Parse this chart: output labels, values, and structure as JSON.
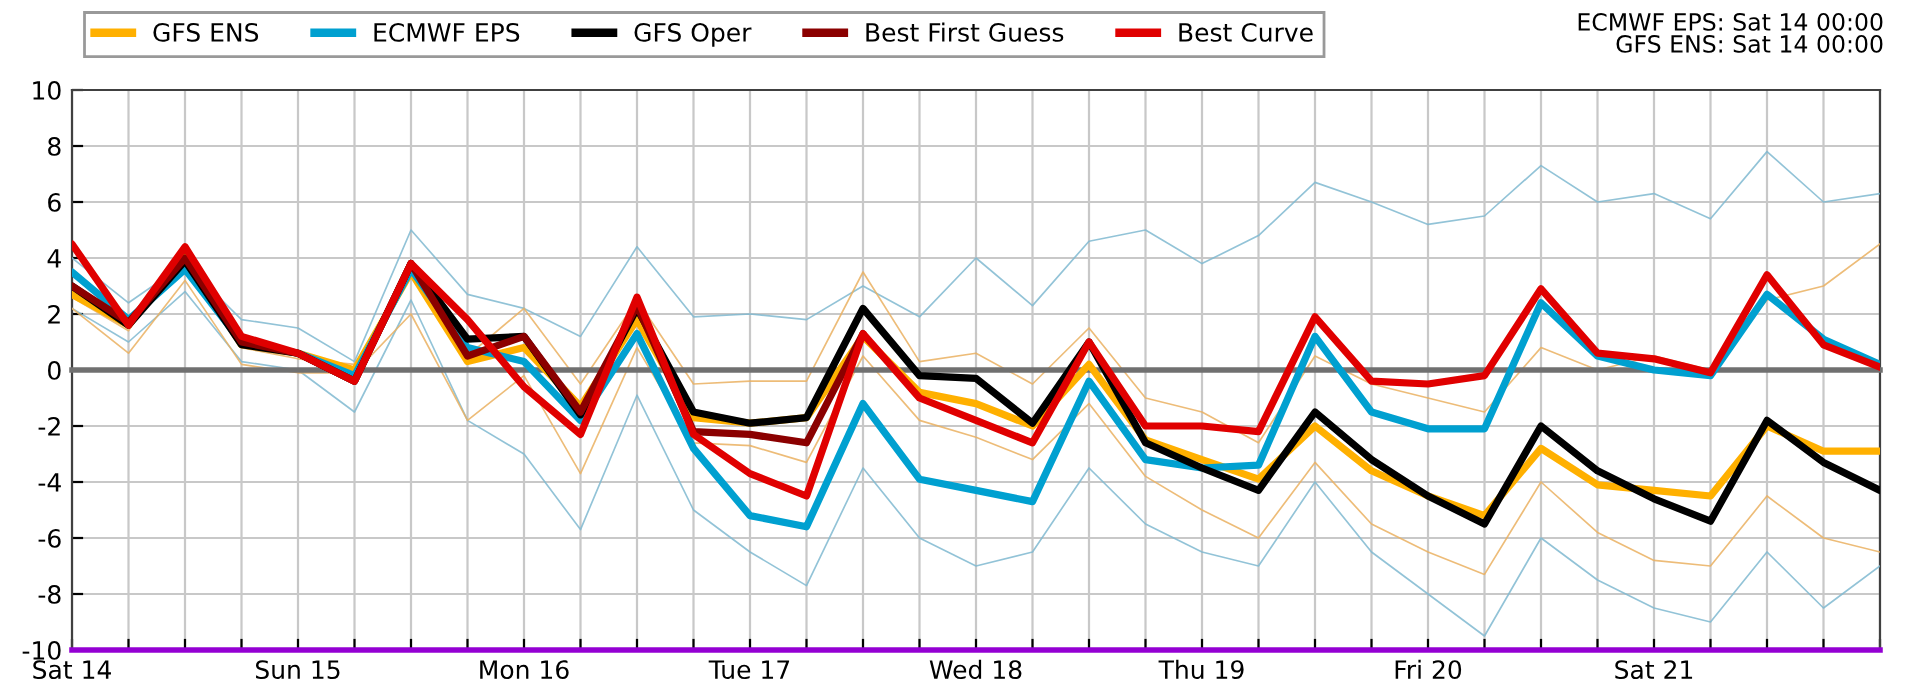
{
  "chart_data": {
    "type": "line",
    "categories": [
      "Sat 14",
      null,
      null,
      null,
      "Sun 15",
      null,
      null,
      null,
      "Mon 16",
      null,
      null,
      null,
      "Tue 17",
      null,
      null,
      null,
      "Wed 18",
      null,
      null,
      null,
      "Thu 19",
      null,
      null,
      null,
      "Fri 20",
      null,
      null,
      null,
      "Sat 21",
      null,
      null,
      null,
      null
    ],
    "series": [
      {
        "color": "#7fb8d0",
        "values": [
          4.0,
          2.4,
          3.8,
          1.8,
          1.5,
          0.3,
          5.0,
          2.7,
          2.2,
          1.2,
          4.4,
          1.9,
          2.0,
          1.8,
          3.0,
          1.9,
          4.0,
          2.3,
          4.6,
          5.0,
          3.8,
          4.8,
          6.7,
          6.0,
          5.2,
          5.5,
          7.3,
          6.0,
          6.3,
          5.4,
          7.8,
          6.0,
          6.3
        ]
      },
      {
        "color": "#7fb8d0",
        "values": [
          2.2,
          1.0,
          2.8,
          0.3,
          0.0,
          -1.5,
          2.5,
          -1.8,
          -3.0,
          -5.7,
          -0.9,
          -5.0,
          -6.5,
          -7.7,
          -3.5,
          -6.0,
          -7.0,
          -6.5,
          -3.5,
          -5.5,
          -6.5,
          -7.0,
          -4.0,
          -6.5,
          -8.0,
          -9.5,
          -6.0,
          -7.5,
          -8.5,
          -9.0,
          -6.5,
          -8.5,
          -7.0
        ]
      },
      {
        "color": "#eab060",
        "values": [
          2.6,
          1.4,
          4.5,
          0.8,
          0.4,
          0.2,
          3.4,
          0.5,
          2.2,
          -0.5,
          2.5,
          -0.5,
          -0.4,
          -0.4,
          3.5,
          0.3,
          0.6,
          -0.5,
          1.5,
          -1.0,
          -1.5,
          -2.6,
          0.5,
          -0.5,
          -1.0,
          -1.5,
          0.8,
          0.0,
          0.5,
          0.0,
          2.5,
          3.0,
          4.5
        ]
      },
      {
        "color": "#eab060",
        "values": [
          2.2,
          0.6,
          3.2,
          0.2,
          -0.1,
          -0.1,
          2.0,
          -1.8,
          -0.2,
          -3.7,
          0.8,
          -2.6,
          -2.7,
          -3.3,
          0.5,
          -1.8,
          -2.4,
          -3.2,
          -1.2,
          -3.8,
          -5.0,
          -6.0,
          -3.3,
          -5.5,
          -6.5,
          -7.3,
          -4.0,
          -5.8,
          -6.8,
          -7.0,
          -4.5,
          -6.0,
          -6.5
        ]
      },
      {
        "name": "GFS ENS",
        "color": "#ffb000",
        "values": [
          2.7,
          1.6,
          4.1,
          0.9,
          0.6,
          0.0,
          3.5,
          0.3,
          0.8,
          -1.3,
          1.8,
          -1.7,
          -1.9,
          -1.7,
          1.2,
          -0.8,
          -1.2,
          -2.0,
          0.2,
          -2.5,
          -3.2,
          -3.9,
          -2.0,
          -3.6,
          -4.5,
          -5.2,
          -2.8,
          -4.1,
          -4.3,
          -4.5,
          -2.0,
          -2.9,
          -2.9
        ]
      },
      {
        "name": "ECMWF EPS",
        "color": "#00a0d0",
        "values": [
          3.5,
          1.8,
          3.6,
          1.0,
          0.6,
          -0.2,
          3.6,
          0.8,
          0.3,
          -1.8,
          1.3,
          -2.8,
          -5.2,
          -5.6,
          -1.2,
          -3.9,
          -4.3,
          -4.7,
          -0.4,
          -3.2,
          -3.5,
          -3.4,
          1.2,
          -1.5,
          -2.1,
          -2.1,
          2.4,
          0.5,
          0.0,
          -0.2,
          2.7,
          1.1,
          0.2
        ]
      },
      {
        "name": "GFS Oper",
        "color": "#000000",
        "values": [
          3.0,
          1.6,
          3.9,
          0.9,
          0.6,
          -0.4,
          3.8,
          1.1,
          1.2,
          -1.6,
          2.2,
          -1.5,
          -1.9,
          -1.7,
          2.2,
          -0.2,
          -0.3,
          -1.9,
          1.0,
          -2.6,
          -3.5,
          -4.3,
          -1.5,
          -3.2,
          -4.5,
          -5.5,
          -2.0,
          -3.6,
          -4.6,
          -5.4,
          -1.8,
          -3.3,
          -4.3
        ]
      },
      {
        "name": "Best First Guess",
        "color": "#8b0000",
        "values": [
          3.0,
          1.7,
          4.0,
          1.0,
          0.6,
          -0.4,
          3.8,
          0.5,
          1.2,
          -1.5,
          2.3,
          -2.2,
          -2.3,
          -2.6,
          1.3,
          null,
          null,
          null,
          null,
          null,
          null,
          null,
          null,
          null,
          null,
          null,
          null,
          null,
          null,
          null,
          null,
          null,
          null
        ]
      },
      {
        "name": "Best Curve",
        "color": "#e00000",
        "values": [
          4.5,
          1.6,
          4.4,
          1.2,
          0.6,
          -0.4,
          3.8,
          1.8,
          -0.6,
          -2.3,
          2.6,
          -2.3,
          -3.7,
          -4.5,
          1.3,
          -1.0,
          -1.8,
          -2.6,
          1.0,
          -2.0,
          -2.0,
          -2.2,
          1.9,
          -0.4,
          -0.5,
          -0.2,
          2.9,
          0.6,
          0.4,
          -0.1,
          3.4,
          0.9,
          0.1
        ]
      }
    ],
    "ylim": [
      -10,
      10
    ],
    "yticks": [
      -10,
      -8,
      -6,
      -4,
      -2,
      0,
      2,
      4,
      6,
      8,
      10
    ],
    "grid": true,
    "legend": "top left",
    "ref_lines": [
      {
        "axis": "y",
        "value": 0,
        "color": "#707070"
      }
    ],
    "annotations": [
      "ECMWF EPS: Sat 14 00:00",
      "GFS ENS: Sat 14 00:00"
    ]
  }
}
